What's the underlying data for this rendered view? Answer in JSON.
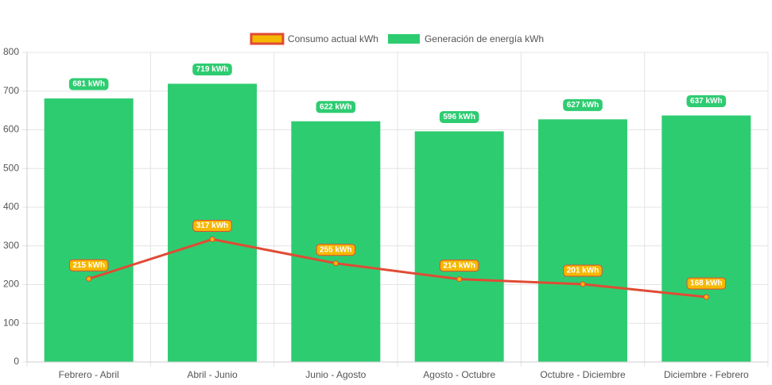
{
  "chart_data": {
    "type": "bar",
    "categories": [
      "Febrero - Abril",
      "Abril - Junio",
      "Junio - Agosto",
      "Agosto - Octubre",
      "Octubre - Diciembre",
      "Diciembre - Febrero"
    ],
    "series": [
      {
        "name": "Consumo actual kWh",
        "type": "line",
        "color": "#e04b35",
        "marker_color": "#f5b800",
        "values": [
          215,
          317,
          255,
          214,
          201,
          168
        ],
        "value_labels": [
          "215 kWh",
          "317 kWh",
          "255 kWh",
          "214 kWh",
          "201 kWh",
          "168 kWh"
        ]
      },
      {
        "name": "Generación de energía kWh",
        "type": "bar",
        "color": "#2ecc71",
        "values": [
          681,
          719,
          622,
          596,
          627,
          637
        ],
        "value_labels": [
          "681 kWh",
          "719 kWh",
          "622 kWh",
          "596 kWh",
          "627 kWh",
          "637 kWh"
        ]
      }
    ],
    "ylim": [
      0,
      800
    ],
    "yticks": [
      0,
      100,
      200,
      300,
      400,
      500,
      600,
      700,
      800
    ],
    "grid": true,
    "legend": "top"
  }
}
